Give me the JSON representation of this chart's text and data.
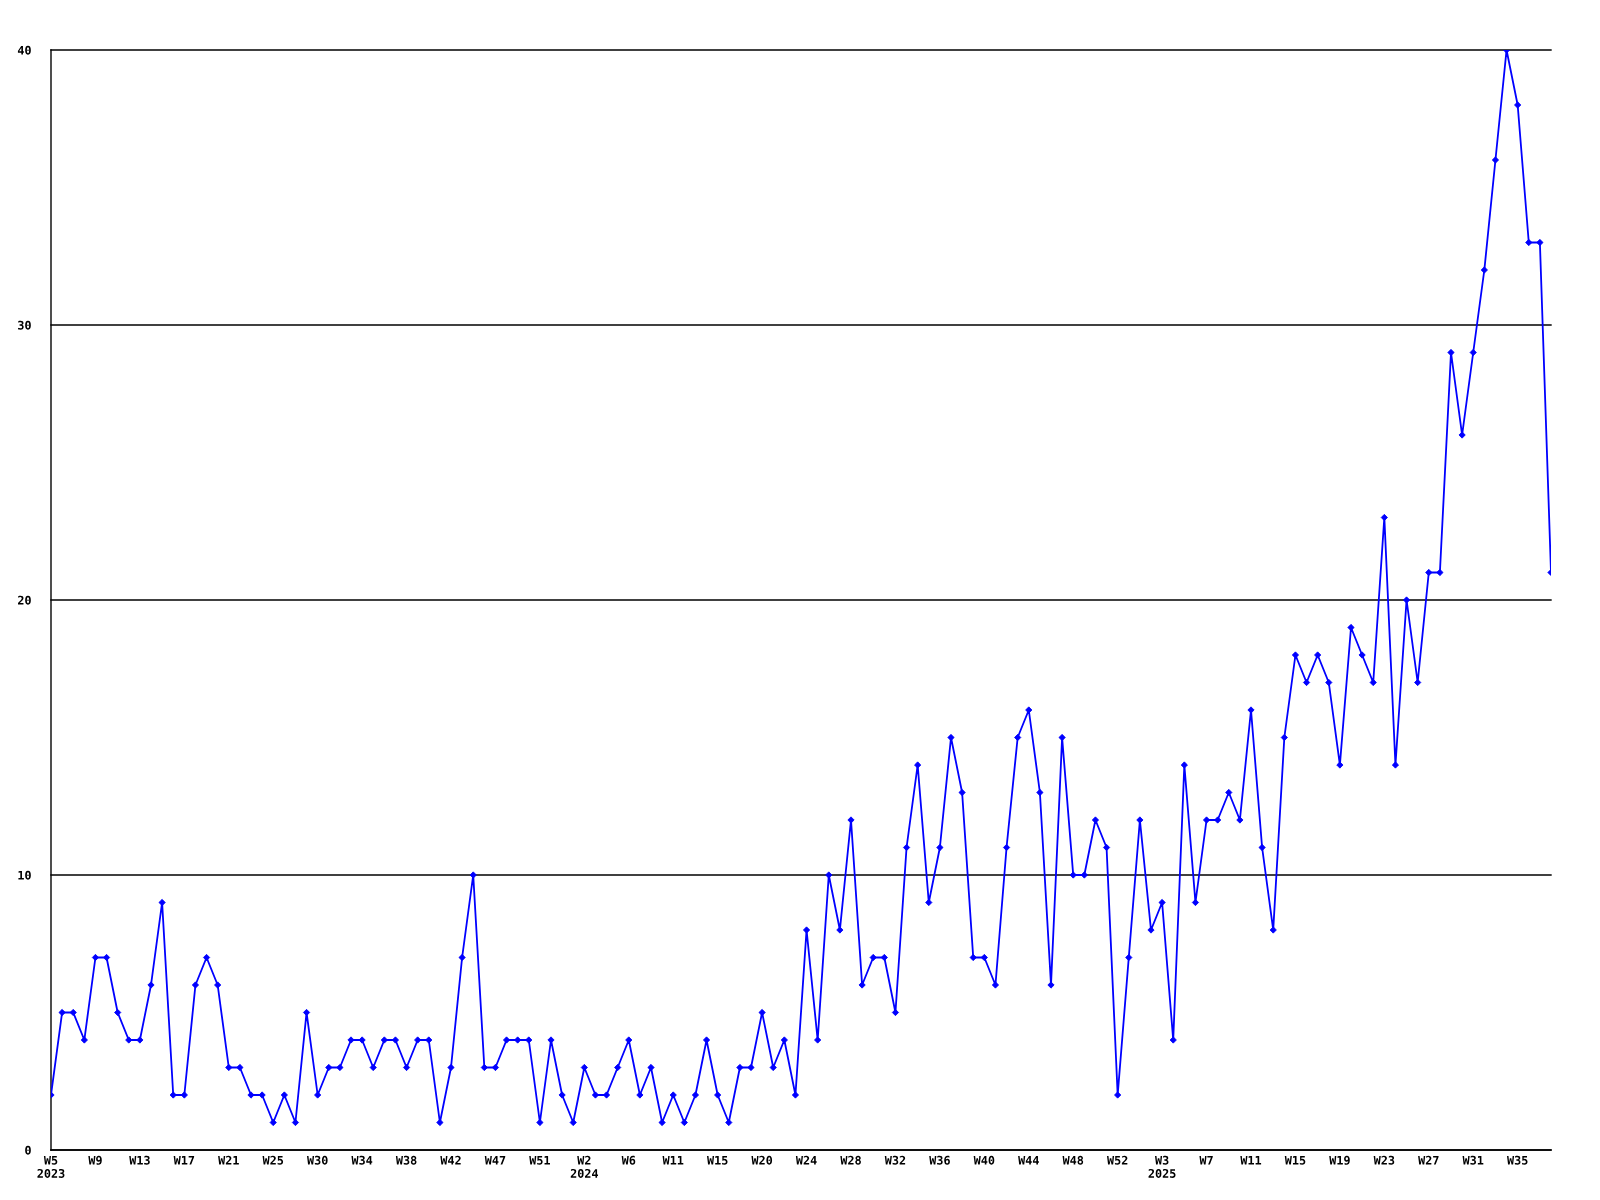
{
  "chart_data": {
    "type": "line",
    "categories": [
      "W5\n2023",
      null,
      null,
      null,
      "W9",
      null,
      null,
      null,
      "W13",
      null,
      null,
      null,
      "W17",
      null,
      null,
      null,
      "W21",
      null,
      null,
      null,
      "W25",
      null,
      null,
      null,
      "W30",
      null,
      null,
      null,
      "W34",
      null,
      null,
      null,
      "W38",
      null,
      null,
      null,
      "W42",
      null,
      null,
      null,
      "W47",
      null,
      null,
      null,
      "W51",
      null,
      null,
      null,
      "W2\n2024",
      null,
      null,
      null,
      "W6",
      null,
      null,
      null,
      "W11",
      null,
      null,
      null,
      "W15",
      null,
      null,
      null,
      "W20",
      null,
      null,
      null,
      "W24",
      null,
      null,
      null,
      "W28",
      null,
      null,
      null,
      "W32",
      null,
      null,
      null,
      "W36",
      null,
      null,
      null,
      "W40",
      null,
      null,
      null,
      "W44",
      null,
      null,
      null,
      "W48",
      null,
      null,
      null,
      "W52",
      null,
      null,
      null,
      "W3\n2025",
      null,
      null,
      null,
      "W7",
      null,
      null,
      null,
      "W11",
      null,
      null,
      null,
      "W15",
      null,
      null,
      null,
      "W19",
      null,
      null,
      null,
      "W23",
      null,
      null,
      null,
      "W27",
      null,
      null,
      null,
      "W31",
      null,
      null,
      null,
      "W35",
      null,
      null,
      null
    ],
    "series": [
      {
        "color": "#0000ff",
        "values": [
          2,
          5,
          5,
          4,
          7,
          7,
          5,
          4,
          4,
          6,
          9,
          2,
          2,
          6,
          7,
          6,
          3,
          3,
          2,
          2,
          1,
          2,
          1,
          5,
          2,
          3,
          3,
          4,
          4,
          3,
          4,
          4,
          3,
          4,
          4,
          1,
          3,
          7,
          10,
          3,
          3,
          4,
          4,
          4,
          1,
          4,
          2,
          1,
          3,
          2,
          2,
          3,
          4,
          2,
          3,
          1,
          2,
          1,
          2,
          4,
          2,
          1,
          3,
          3,
          5,
          3,
          4,
          2,
          8,
          4,
          10,
          8,
          12,
          6,
          7,
          7,
          5,
          11,
          14,
          9,
          11,
          15,
          13,
          7,
          7,
          6,
          11,
          15,
          16,
          13,
          6,
          15,
          10,
          10,
          12,
          11,
          2,
          7,
          12,
          8,
          9,
          4,
          14,
          9,
          12,
          12,
          13,
          12,
          16,
          11,
          8,
          15,
          18,
          17,
          18,
          17,
          14,
          19,
          18,
          17,
          23,
          14,
          20,
          17,
          21,
          21,
          29,
          26,
          29,
          32,
          36,
          40,
          38,
          33,
          33,
          21
        ]
      }
    ],
    "ylim": [
      0,
      40
    ],
    "yticks": [
      0,
      10,
      20,
      30,
      40
    ],
    "grid": "y",
    "marker": "diamond",
    "line_style": "solid"
  }
}
